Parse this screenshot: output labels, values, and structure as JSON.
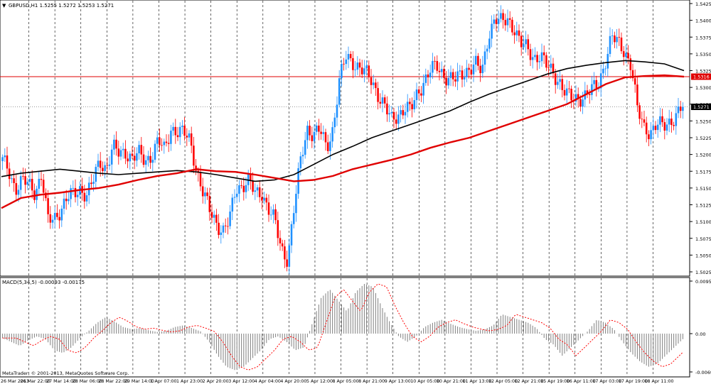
{
  "window": {
    "symbol_info": "GBPUSD,H1  1.5255 1.5272 1.5253 1.5271",
    "copyright": "MetaTrader, © 2001-2013, MetaQuotes Software Corp."
  },
  "macd_label": "MACD(5,34,5) -0.00093 -0.00175",
  "price_axis": {
    "ticks": [
      "1.5425",
      "1.5400",
      "1.5375",
      "1.5350",
      "1.5325",
      "1.5300",
      "1.5275",
      "1.5250",
      "1.5225",
      "1.5200",
      "1.5175",
      "1.5150",
      "1.5125",
      "1.5100",
      "1.5075",
      "1.5050",
      "1.5025"
    ],
    "current_price": "1.5271",
    "line_price": "1.5316"
  },
  "macd_axis": {
    "ticks": [
      "0.00951",
      "0.00",
      "-0.00693"
    ]
  },
  "time_axis": {
    "ticks": [
      "26 Mar 2013",
      "26 Mar 22:00",
      "27 Mar 14:00",
      "28 Mar 06:00",
      "28 Mar 22:00",
      "29 Mar 14:00",
      "1 Apr 07:00",
      "1 Apr 23:00",
      "2 Apr 20:00",
      "3 Apr 12:00",
      "4 Apr 04:00",
      "4 Apr 20:00",
      "5 Apr 12:00",
      "8 Apr 05:00",
      "8 Apr 21:00",
      "9 Apr 13:00",
      "10 Apr 05:00",
      "10 Apr 21:00",
      "11 Apr 13:00",
      "12 Apr 05:00",
      "12 Apr 21:00",
      "15 Apr 19:00",
      "16 Apr 11:00",
      "17 Apr 03:00",
      "17 Apr 19:00",
      "18 Apr 11:00"
    ]
  },
  "colors": {
    "bull": "#1e90ff",
    "bear": "#ff0000",
    "ma_fast": "#e00000",
    "ma_slow": "#000000",
    "hline": "#e00000",
    "macd_hist": "#808080",
    "macd_signal": "#ff0000"
  },
  "chart_data": [
    {
      "type": "candlestick",
      "symbol": "GBPUSD",
      "timeframe": "H1",
      "ylim": [
        1.5025,
        1.5425
      ],
      "x_ticks": [
        "26 Mar 2013",
        "26 Mar 22:00",
        "27 Mar 14:00",
        "28 Mar 06:00",
        "28 Mar 22:00",
        "29 Mar 14:00",
        "1 Apr 07:00",
        "1 Apr 23:00",
        "2 Apr 20:00",
        "3 Apr 12:00",
        "4 Apr 04:00",
        "4 Apr 20:00",
        "5 Apr 12:00",
        "8 Apr 05:00",
        "8 Apr 21:00",
        "9 Apr 13:00",
        "10 Apr 05:00",
        "10 Apr 21:00",
        "11 Apr 13:00",
        "12 Apr 05:00",
        "12 Apr 21:00",
        "15 Apr 19:00",
        "16 Apr 11:00",
        "17 Apr 03:00",
        "17 Apr 19:00",
        "18 Apr 11:00"
      ],
      "close_path": [
        1.519,
        1.5175,
        1.515,
        1.516,
        1.5155,
        1.5145,
        1.517,
        1.51,
        1.5105,
        1.512,
        1.5135,
        1.514,
        1.515,
        1.514,
        1.516,
        1.519,
        1.518,
        1.521,
        1.52,
        1.5205,
        1.5195,
        1.52,
        1.519,
        1.52,
        1.522,
        1.5205,
        1.524,
        1.5235,
        1.523,
        1.522,
        1.5175,
        1.514,
        1.5115,
        1.51,
        1.5085,
        1.51,
        1.515,
        1.5155,
        1.516,
        1.514,
        1.5145,
        1.512,
        1.51,
        1.506,
        1.5045,
        1.512,
        1.519,
        1.524,
        1.523,
        1.5235,
        1.521,
        1.524,
        1.531,
        1.5345,
        1.534,
        1.533,
        1.532,
        1.531,
        1.529,
        1.527,
        1.525,
        1.526,
        1.527,
        1.5265,
        1.529,
        1.531,
        1.5325,
        1.533,
        1.532,
        1.5315,
        1.531,
        1.532,
        1.533,
        1.5335,
        1.532,
        1.538,
        1.5405,
        1.5395,
        1.54,
        1.539,
        1.5365,
        1.5355,
        1.5345,
        1.535,
        1.533,
        1.532,
        1.531,
        1.529,
        1.528,
        1.5285,
        1.529,
        1.5295,
        1.5305,
        1.534,
        1.5375,
        1.5365,
        1.5355,
        1.5335,
        1.5265,
        1.524,
        1.5235,
        1.5245,
        1.524,
        1.525,
        1.526,
        1.5271
      ],
      "series": [
        {
          "name": "MA fast",
          "values": [
            1.5167,
            1.5172,
            1.5175,
            1.5178,
            1.5175,
            1.5172,
            1.517,
            1.5172,
            1.5174,
            1.5176,
            1.5174,
            1.517,
            1.5165,
            1.516,
            1.5162,
            1.517,
            1.5185,
            1.52,
            1.5212,
            1.5225,
            1.5235,
            1.5245,
            1.5255,
            1.5265,
            1.5278,
            1.529,
            1.53,
            1.531,
            1.532,
            1.5328,
            1.5333,
            1.5337,
            1.534,
            1.5338,
            1.5335,
            1.5325
          ]
        },
        {
          "name": "MA slow",
          "values": [
            1.512,
            1.5135,
            1.514,
            1.5143,
            1.5147,
            1.515,
            1.5155,
            1.5162,
            1.5168,
            1.5172,
            1.5178,
            1.5175,
            1.5174,
            1.517,
            1.5165,
            1.516,
            1.5162,
            1.5168,
            1.5178,
            1.5185,
            1.5192,
            1.52,
            1.521,
            1.5218,
            1.5225,
            1.5235,
            1.5245,
            1.5255,
            1.5265,
            1.5275,
            1.529,
            1.5305,
            1.5315,
            1.5317,
            1.5318,
            1.5316
          ]
        }
      ]
    },
    {
      "type": "bar",
      "name": "MACD(5,34,5)",
      "ylim": [
        -0.00693,
        0.00951
      ],
      "values": [
        -0.0008,
        -0.0015,
        -0.0022,
        -0.0012,
        -0.0005,
        -0.001,
        -0.003,
        -0.0035,
        -0.0025,
        -0.0008,
        0.0005,
        0.002,
        0.003,
        0.0022,
        0.0012,
        0.0008,
        0.001,
        0.0006,
        0.0003,
        0.0005,
        0.0012,
        0.0015,
        0.001,
        0.0004,
        -0.0015,
        -0.004,
        -0.006,
        -0.0066,
        -0.006,
        -0.0045,
        -0.003,
        -0.001,
        -0.0005,
        -0.0015,
        -0.003,
        -0.0025,
        0.002,
        0.0065,
        0.008,
        0.006,
        0.004,
        0.0075,
        0.009,
        0.0085,
        0.005,
        0.002,
        -0.0005,
        -0.0015,
        -0.0005,
        0.0012,
        0.002,
        0.0025,
        0.0018,
        0.0012,
        0.0008,
        0.0005,
        0.0008,
        0.0015,
        0.0035,
        0.003,
        0.0025,
        0.002,
        0.001,
        -0.001,
        -0.002,
        -0.004,
        -0.0025,
        -0.001,
        0.0005,
        0.0025,
        0.002,
        0.0008,
        -0.0015,
        -0.0035,
        -0.005,
        -0.006,
        -0.0055,
        -0.004,
        -0.0025,
        -0.001
      ]
    }
  ]
}
